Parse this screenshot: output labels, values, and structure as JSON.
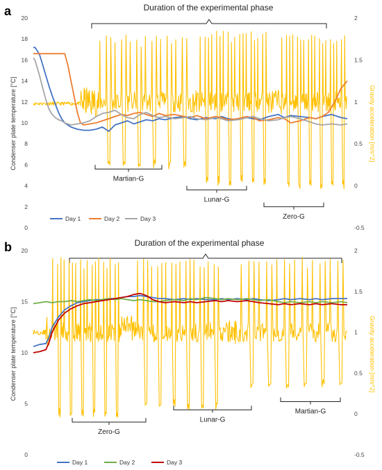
{
  "chart_data": [
    {
      "panel_label": "a",
      "type": "line",
      "title": "Duration of the experimental phase",
      "ylabel": "Condenser plate temperature [°C]",
      "y2label": "Gravity acceleration [m/s^2]",
      "ylim": [
        0,
        20
      ],
      "y2lim": [
        -0.5,
        2
      ],
      "yticks": [
        "0",
        "2",
        "4",
        "6",
        "8",
        "10",
        "12",
        "14",
        "16",
        "18",
        "20"
      ],
      "y2ticks": [
        "-0.5",
        "0",
        "0.5",
        "1",
        "1.5",
        "2"
      ],
      "grid": false,
      "legend_position": "bottom-left",
      "annotations": [
        {
          "label": "Martian-G",
          "y2": 0.2
        },
        {
          "label": "Lunar-G",
          "y2": -0.05
        },
        {
          "label": "Zero-G",
          "y2": -0.25
        }
      ],
      "series": [
        {
          "name": "Day 1",
          "color": "#4472c4",
          "axis": "left",
          "x": [
            0,
            0.5,
            1,
            2,
            3,
            4,
            5,
            6,
            7,
            8,
            9,
            10,
            12,
            14,
            16,
            18,
            20,
            22,
            24,
            26,
            28,
            30,
            32,
            34,
            36,
            38,
            40,
            42,
            45,
            48,
            50,
            52,
            55,
            58,
            60,
            62,
            65,
            68,
            70,
            72,
            75,
            78,
            80,
            82,
            85,
            88,
            90,
            92,
            95,
            98,
            100
          ],
          "values": [
            17.2,
            17.2,
            17.0,
            16.5,
            15.5,
            14.5,
            13.5,
            12.6,
            11.8,
            11.0,
            10.4,
            10.0,
            9.6,
            9.4,
            9.3,
            9.3,
            9.4,
            9.6,
            9.2,
            9.8,
            10.0,
            10.2,
            9.9,
            10.1,
            10.3,
            10.2,
            10.4,
            10.3,
            10.5,
            10.6,
            10.4,
            10.3,
            10.5,
            10.4,
            10.6,
            10.4,
            10.3,
            10.5,
            10.4,
            10.3,
            10.6,
            10.8,
            10.5,
            10.7,
            10.6,
            10.5,
            10.4,
            10.6,
            10.8,
            10.5,
            10.4
          ]
        },
        {
          "name": "Day 2",
          "color": "#ed7d31",
          "axis": "left",
          "x": [
            0,
            2,
            4,
            6,
            8,
            10,
            11,
            12,
            13,
            14,
            15,
            16,
            18,
            20,
            22,
            24,
            26,
            28,
            30,
            32,
            34,
            36,
            38,
            40,
            42,
            45,
            48,
            50,
            52,
            55,
            58,
            60,
            62,
            65,
            68,
            70,
            72,
            75,
            78,
            80,
            82,
            85,
            88,
            90,
            92,
            94,
            96,
            98,
            100
          ],
          "values": [
            16.6,
            16.6,
            16.6,
            16.6,
            16.6,
            16.6,
            15.5,
            14.0,
            12.5,
            11.0,
            10.0,
            9.8,
            9.9,
            10.0,
            10.2,
            10.4,
            10.6,
            10.8,
            10.7,
            10.9,
            11.0,
            10.8,
            10.6,
            10.9,
            10.7,
            10.8,
            10.6,
            10.5,
            10.7,
            10.4,
            10.6,
            10.5,
            10.3,
            10.4,
            10.6,
            10.5,
            10.2,
            10.3,
            10.5,
            10.4,
            10.0,
            10.2,
            10.5,
            10.4,
            10.6,
            11.0,
            12.0,
            13.3,
            14.0
          ]
        },
        {
          "name": "Day 3",
          "color": "#a5a5a5",
          "axis": "left",
          "x": [
            0,
            0.5,
            1,
            2,
            3,
            4,
            5,
            6,
            7,
            8,
            9,
            10,
            12,
            14,
            16,
            18,
            20,
            22,
            24,
            26,
            28,
            30,
            32,
            34,
            36,
            38,
            40,
            42,
            45,
            48,
            50,
            52,
            55,
            58,
            60,
            62,
            65,
            68,
            70,
            72,
            75,
            78,
            80,
            82,
            85,
            88,
            90,
            92,
            95,
            98,
            100
          ],
          "values": [
            16.2,
            16.0,
            15.5,
            14.5,
            13.3,
            12.2,
            11.3,
            10.8,
            10.5,
            10.3,
            10.2,
            10.0,
            9.8,
            9.9,
            10.0,
            10.2,
            10.6,
            10.9,
            11.0,
            11.2,
            10.8,
            10.5,
            10.4,
            10.8,
            11.0,
            10.7,
            10.5,
            10.6,
            10.4,
            10.5,
            10.6,
            10.4,
            10.3,
            10.5,
            10.4,
            10.2,
            10.3,
            10.5,
            10.6,
            10.4,
            10.2,
            10.3,
            10.5,
            10.6,
            10.4,
            10.1,
            9.9,
            9.8,
            9.9,
            9.8,
            9.9
          ]
        },
        {
          "name": "",
          "color": "#ffc000",
          "axis": "right",
          "kind": "gravity",
          "segments": [
            {
              "from": 0,
              "to": 15,
              "level": 0.98,
              "noise": 0.02
            },
            {
              "from": 15,
              "to": 21,
              "level": 1.0,
              "noise": 0.18
            },
            {
              "from": 21,
              "to": 50,
              "low": 0.2,
              "high": 1.8,
              "pulses": 6,
              "noise": 0.12
            },
            {
              "from": 50,
              "to": 53,
              "level": 1.0,
              "noise": 0.15
            },
            {
              "from": 53,
              "to": 75,
              "low": 0.0,
              "high": 1.85,
              "pulses": 6,
              "noise": 0.12
            },
            {
              "from": 75,
              "to": 79,
              "level": 1.0,
              "noise": 0.15
            },
            {
              "from": 79,
              "to": 100,
              "low": -0.05,
              "high": 1.82,
              "pulses": 6,
              "noise": 0.12
            }
          ]
        }
      ]
    },
    {
      "panel_label": "b",
      "type": "line",
      "title": "Duration of the experimental phase",
      "ylabel": "Condenser plate temperature [°C]",
      "y2label": "Gravity acceleration [m/s^2]",
      "ylim": [
        0,
        20
      ],
      "y2lim": [
        -0.5,
        2
      ],
      "yticks": [
        "0",
        "5",
        "10",
        "15",
        "20"
      ],
      "y2ticks": [
        "-0.5",
        "0",
        "0.5",
        "1",
        "1.5",
        "2"
      ],
      "grid": false,
      "legend_position": "bottom-left",
      "annotations": [
        {
          "label": "Zero-G",
          "y2": -0.1
        },
        {
          "label": "Lunar-G",
          "y2": 0.05
        },
        {
          "label": "Martian-G",
          "y2": 0.15
        }
      ],
      "series": [
        {
          "name": "Day 1",
          "color": "#4472c4",
          "axis": "left",
          "x": [
            0,
            2,
            4,
            5,
            6,
            8,
            10,
            12,
            14,
            16,
            18,
            20,
            22,
            24,
            26,
            28,
            30,
            32,
            34,
            36,
            38,
            40,
            42,
            45,
            48,
            50,
            52,
            55,
            58,
            60,
            62,
            65,
            68,
            70,
            72,
            75,
            78,
            80,
            82,
            85,
            88,
            90,
            92,
            95,
            98,
            100
          ],
          "values": [
            10.6,
            10.8,
            10.9,
            11.5,
            12.5,
            13.5,
            14.2,
            14.6,
            14.9,
            15.0,
            15.1,
            15.2,
            15.2,
            15.3,
            15.3,
            15.4,
            15.5,
            15.5,
            15.6,
            15.5,
            15.4,
            15.3,
            15.3,
            15.2,
            15.3,
            15.2,
            15.3,
            15.2,
            15.2,
            15.3,
            15.2,
            15.3,
            15.2,
            15.3,
            15.2,
            15.1,
            15.2,
            15.3,
            15.2,
            15.3,
            15.2,
            15.3,
            15.2,
            15.3,
            15.3,
            15.3
          ]
        },
        {
          "name": "Day 2",
          "color": "#70ad47",
          "axis": "left",
          "x": [
            0,
            2,
            4,
            6,
            8,
            10,
            12,
            14,
            16,
            18,
            20,
            22,
            24,
            26,
            28,
            30,
            32,
            34,
            36,
            38,
            40,
            42,
            45,
            48,
            50,
            52,
            55,
            58,
            60,
            62,
            65,
            68,
            70,
            72,
            75,
            78,
            80,
            82,
            85,
            88,
            90,
            92,
            95,
            98,
            100
          ],
          "values": [
            14.8,
            14.9,
            15.0,
            14.9,
            15.0,
            15.0,
            15.1,
            15.0,
            15.1,
            15.2,
            15.1,
            15.2,
            15.3,
            15.2,
            15.3,
            15.2,
            15.1,
            15.2,
            15.1,
            15.0,
            15.0,
            15.1,
            15.2,
            15.1,
            15.3,
            15.2,
            15.4,
            15.3,
            15.2,
            15.3,
            15.2,
            15.3,
            15.2,
            15.1,
            15.2,
            15.0,
            14.9,
            15.0,
            14.9,
            15.0,
            14.9,
            15.0,
            14.9,
            15.0,
            14.9
          ]
        },
        {
          "name": "Day 3",
          "color": "#c00000",
          "axis": "left",
          "x": [
            0,
            2,
            4,
            5,
            6,
            8,
            10,
            12,
            14,
            16,
            18,
            20,
            22,
            24,
            26,
            28,
            30,
            32,
            34,
            36,
            38,
            40,
            42,
            45,
            48,
            50,
            52,
            55,
            58,
            60,
            62,
            65,
            68,
            70,
            72,
            75,
            78,
            80,
            82,
            85,
            88,
            90,
            92,
            95,
            98,
            100
          ],
          "values": [
            10.0,
            10.1,
            10.3,
            11.0,
            12.0,
            13.2,
            13.9,
            14.3,
            14.6,
            14.8,
            14.9,
            15.0,
            15.1,
            15.2,
            15.3,
            15.4,
            15.5,
            15.7,
            15.8,
            15.6,
            15.2,
            15.0,
            14.9,
            15.0,
            14.9,
            15.0,
            14.9,
            15.0,
            15.1,
            15.0,
            15.1,
            15.0,
            15.1,
            15.0,
            14.9,
            14.8,
            14.7,
            14.8,
            14.7,
            14.8,
            14.7,
            14.8,
            14.7,
            14.8,
            14.7,
            14.7
          ]
        },
        {
          "name": "",
          "color": "#ffc000",
          "axis": "right",
          "kind": "gravity",
          "segments": [
            {
              "from": 0,
              "to": 4,
              "level": 1.0,
              "noise": 0.03
            },
            {
              "from": 4,
              "to": 6,
              "level": 1.0,
              "noise": 0.2
            },
            {
              "from": 6,
              "to": 28,
              "low": -0.05,
              "high": 1.92,
              "pulses": 6,
              "noise": 0.12
            },
            {
              "from": 28,
              "to": 33,
              "level": 1.05,
              "noise": 0.15
            },
            {
              "from": 33,
              "to": 60,
              "low": 0.05,
              "high": 1.9,
              "pulses": 6,
              "noise": 0.12
            },
            {
              "from": 60,
              "to": 66,
              "level": 1.0,
              "noise": 0.15
            },
            {
              "from": 66,
              "to": 100,
              "low": 0.3,
              "high": 1.92,
              "pulses": 6,
              "noise": 0.12
            }
          ]
        }
      ]
    }
  ]
}
